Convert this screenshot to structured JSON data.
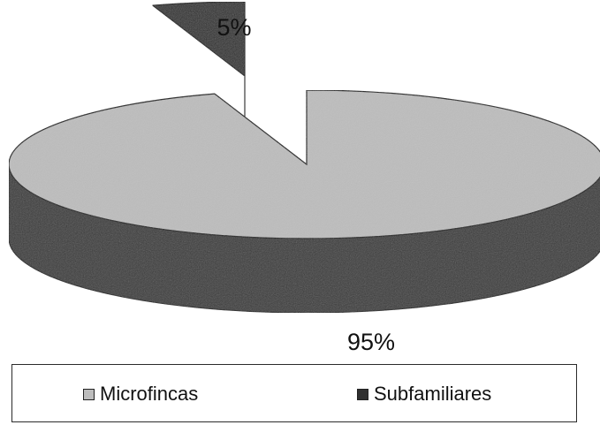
{
  "chart_data": {
    "type": "pie",
    "style": "3d-exploded",
    "title": "",
    "categories": [
      "Microfincas",
      "Subfamiliares"
    ],
    "values": [
      95,
      5
    ],
    "data_labels": [
      "95%",
      "5%"
    ],
    "colors": [
      "#bdbdbd",
      "#303030"
    ],
    "side_colors": [
      "#3a3a3a",
      "#1c1c1c"
    ],
    "exploded": "Subfamiliares",
    "legend": {
      "position": "bottom",
      "entries": [
        "Microfincas",
        "Subfamiliares"
      ]
    }
  }
}
